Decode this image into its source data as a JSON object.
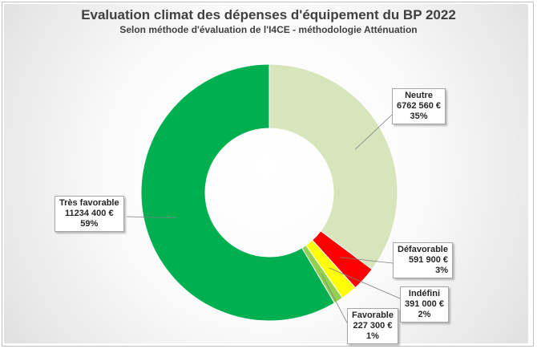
{
  "chart_data": {
    "type": "donut",
    "title": "Evaluation climat des dépenses d'équipement du BP 2022",
    "subtitle": "Selon méthode d'évaluation de l'I4CE - méthodologie Atténuation",
    "slices": [
      {
        "name": "Neutre",
        "value_label": "6762 560 €",
        "value": 6762560,
        "percent_label": "35%",
        "color": "#d8e4bc"
      },
      {
        "name": "Défavorable",
        "value_label": "591 900 €",
        "value": 591900,
        "percent_label": "3%",
        "color": "#ff0000"
      },
      {
        "name": "Indéfini",
        "value_label": "391 000 €",
        "value": 391000,
        "percent_label": "2%",
        "color": "#ffff00"
      },
      {
        "name": "Favorable",
        "value_label": "227 300 €",
        "value": 227300,
        "percent_label": "1%",
        "color": "#92d050"
      },
      {
        "name": "Très favorable",
        "value_label": "11234 400 €",
        "value": 11234400,
        "percent_label": "59%",
        "color": "#00b050"
      }
    ]
  }
}
